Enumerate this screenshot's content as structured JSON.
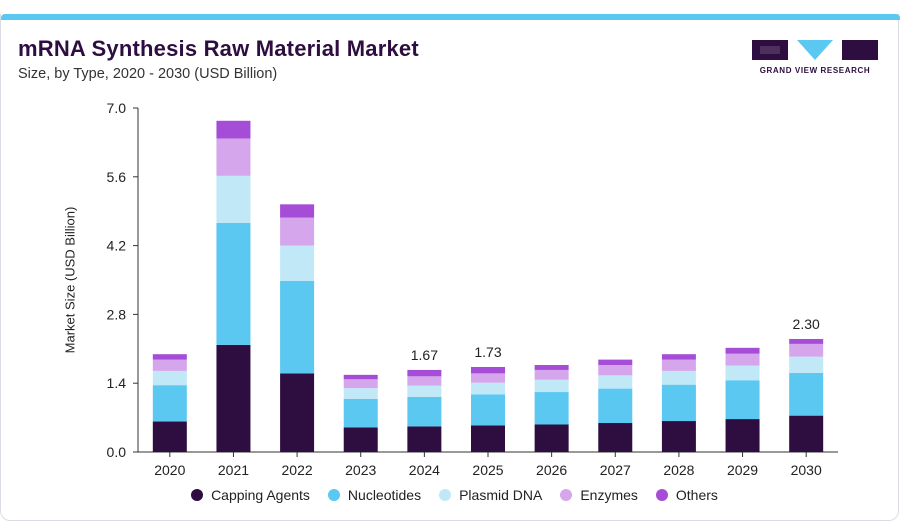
{
  "header": {
    "title": "mRNA Synthesis Raw Material Market",
    "subtitle": "Size, by Type, 2020 - 2030 (USD Billion)"
  },
  "brand": {
    "name": "GRAND VIEW RESEARCH",
    "colors": {
      "purple": "#2e0e40",
      "cyan": "#5ac8f0"
    }
  },
  "chart_data": {
    "type": "bar",
    "stacked": true,
    "categories": [
      "2020",
      "2021",
      "2022",
      "2023",
      "2024",
      "2025",
      "2026",
      "2027",
      "2028",
      "2029",
      "2030"
    ],
    "ylabel": "Market Size (USD Billion)",
    "xlabel": "",
    "ylim": [
      0,
      7.0
    ],
    "yticks": [
      "0.0",
      "1.4",
      "2.8",
      "4.2",
      "5.6",
      "7.0"
    ],
    "grid": false,
    "legend_position": "bottom",
    "series": [
      {
        "name": "Capping Agents",
        "color": "#2e0e40",
        "values": [
          0.62,
          2.18,
          1.6,
          0.5,
          0.52,
          0.54,
          0.56,
          0.59,
          0.63,
          0.67,
          0.74
        ]
      },
      {
        "name": "Nucleotides",
        "color": "#5ac8f0",
        "values": [
          0.74,
          2.48,
          1.88,
          0.58,
          0.6,
          0.63,
          0.66,
          0.7,
          0.74,
          0.79,
          0.87
        ]
      },
      {
        "name": "Plasmid DNA",
        "color": "#c0e8f7",
        "values": [
          0.29,
          0.96,
          0.72,
          0.22,
          0.23,
          0.24,
          0.25,
          0.27,
          0.28,
          0.3,
          0.33
        ]
      },
      {
        "name": "Enzymes",
        "color": "#d5a6eb",
        "values": [
          0.23,
          0.76,
          0.57,
          0.18,
          0.19,
          0.19,
          0.2,
          0.21,
          0.23,
          0.24,
          0.26
        ]
      },
      {
        "name": "Others",
        "color": "#a54dd6",
        "values": [
          0.11,
          0.36,
          0.27,
          0.09,
          0.13,
          0.13,
          0.1,
          0.11,
          0.11,
          0.12,
          0.1
        ]
      }
    ],
    "annotations": [
      {
        "category": "2024",
        "label": "1.67"
      },
      {
        "category": "2025",
        "label": "1.73"
      },
      {
        "category": "2030",
        "label": "2.30"
      }
    ]
  }
}
